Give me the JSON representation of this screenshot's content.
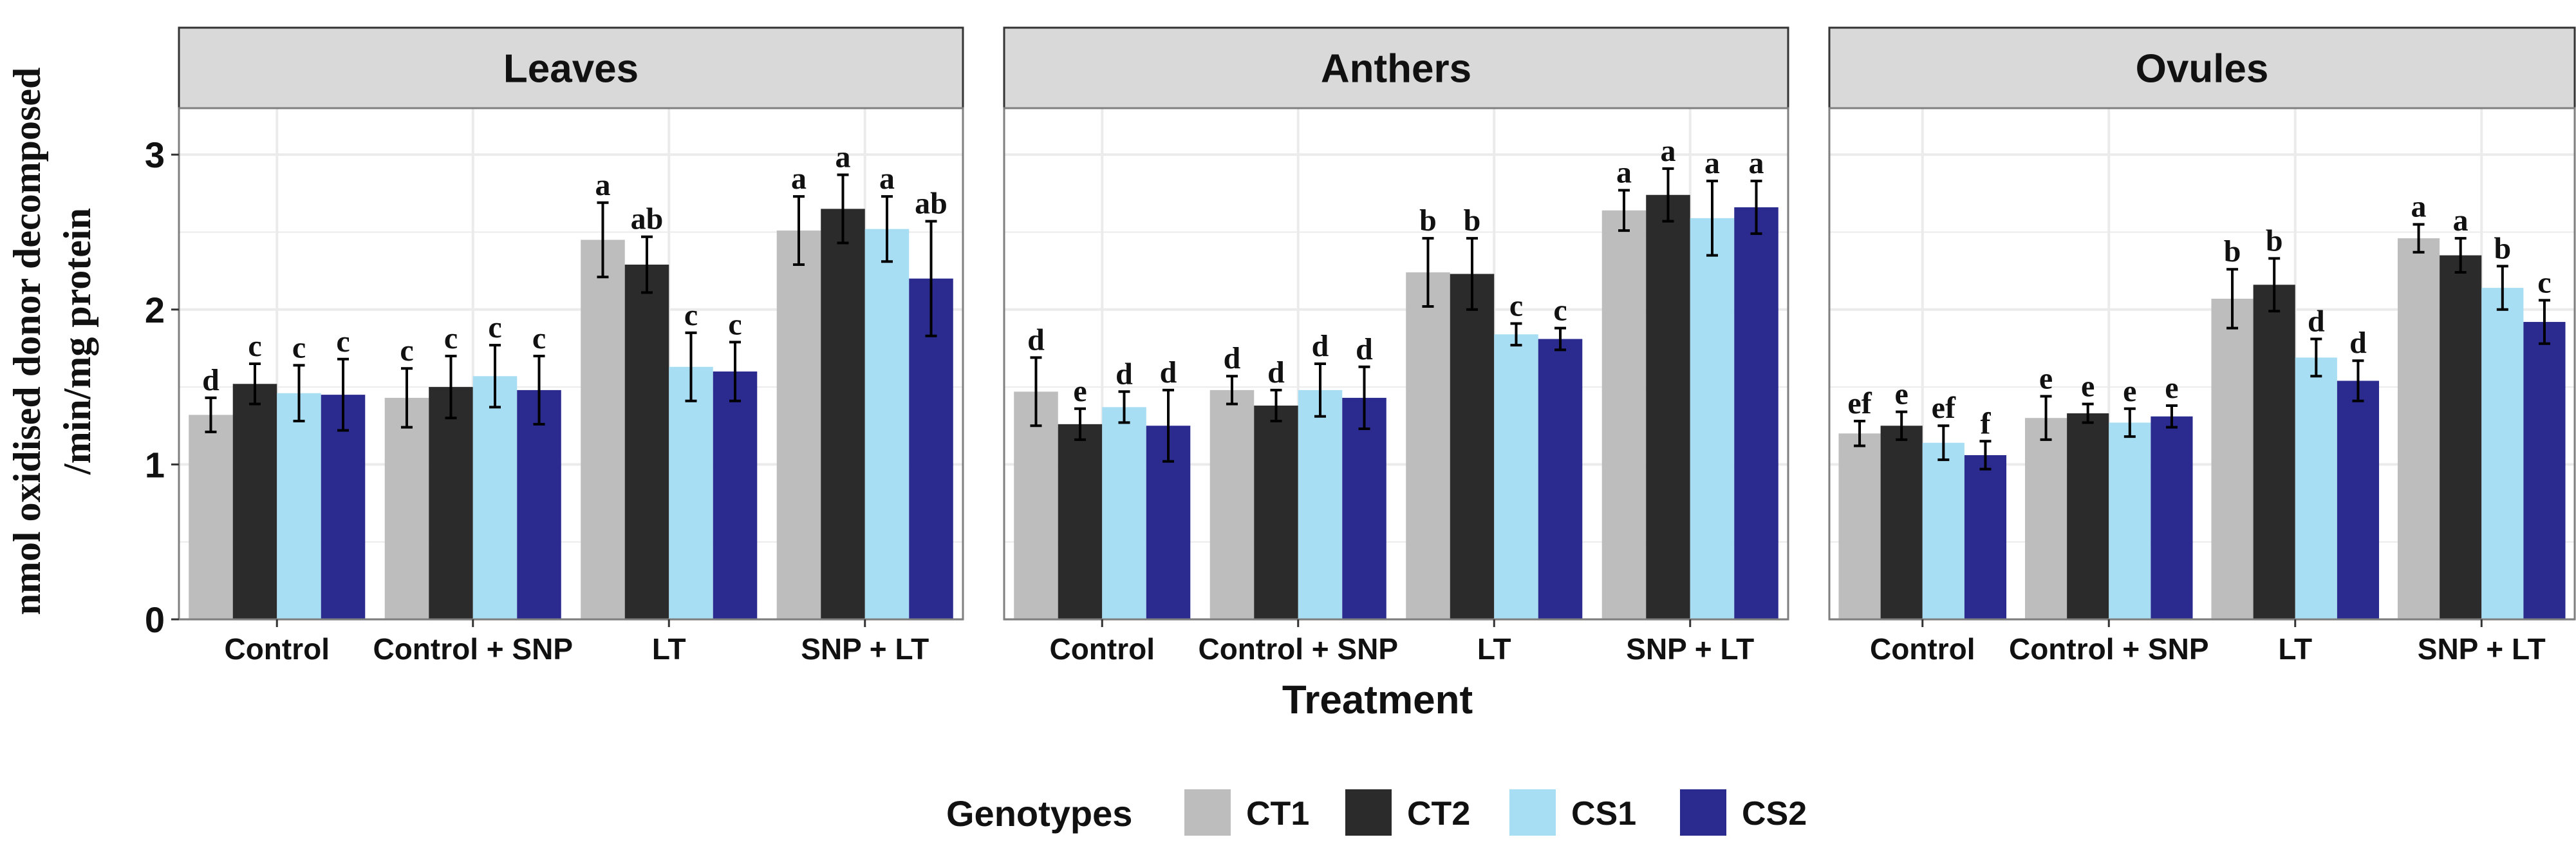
{
  "chart_data": {
    "type": "bar",
    "ylabel": [
      "nmol oxidised donor decomposed",
      "/min/mg protein"
    ],
    "xlabel": "Treatment",
    "ylim": [
      0,
      3.3
    ],
    "yticks": [
      0,
      1,
      2,
      3
    ],
    "grid": true,
    "categories": [
      "Control",
      "Control + SNP",
      "LT",
      "SNP + LT"
    ],
    "legend": {
      "title": "Genotypes",
      "position": "bottom",
      "entries": [
        "CT1",
        "CT2",
        "CS1",
        "CS2"
      ]
    },
    "colors": {
      "CT1": "#bdbdbd",
      "CT2": "#2b2b2b",
      "CS1": "#a8def3",
      "CS2": "#2b2b8f",
      "strip_fill": "#d9d9d9",
      "grid": "#ebebeb",
      "frame": "#7f7f7f"
    },
    "panels": [
      {
        "title": "Leaves",
        "series": [
          {
            "name": "CT1",
            "values": [
              1.32,
              1.43,
              2.45,
              2.51
            ],
            "errors": [
              0.11,
              0.19,
              0.24,
              0.22
            ],
            "labels": [
              "d",
              "c",
              "a",
              "a"
            ]
          },
          {
            "name": "CT2",
            "values": [
              1.52,
              1.5,
              2.29,
              2.65
            ],
            "errors": [
              0.13,
              0.2,
              0.18,
              0.22
            ],
            "labels": [
              "c",
              "c",
              "ab",
              "a"
            ]
          },
          {
            "name": "CS1",
            "values": [
              1.46,
              1.57,
              1.63,
              2.52
            ],
            "errors": [
              0.18,
              0.2,
              0.22,
              0.21
            ],
            "labels": [
              "c",
              "c",
              "c",
              "a"
            ]
          },
          {
            "name": "CS2",
            "values": [
              1.45,
              1.48,
              1.6,
              2.2
            ],
            "errors": [
              0.23,
              0.22,
              0.19,
              0.37
            ],
            "labels": [
              "c",
              "c",
              "c",
              "ab"
            ]
          }
        ]
      },
      {
        "title": "Anthers",
        "series": [
          {
            "name": "CT1",
            "values": [
              1.47,
              1.48,
              2.24,
              2.64
            ],
            "errors": [
              0.22,
              0.09,
              0.22,
              0.13
            ],
            "labels": [
              "d",
              "d",
              "b",
              "a"
            ]
          },
          {
            "name": "CT2",
            "values": [
              1.26,
              1.38,
              2.23,
              2.74
            ],
            "errors": [
              0.1,
              0.1,
              0.23,
              0.17
            ],
            "labels": [
              "e",
              "d",
              "b",
              "a"
            ]
          },
          {
            "name": "CS1",
            "values": [
              1.37,
              1.48,
              1.84,
              2.59
            ],
            "errors": [
              0.1,
              0.17,
              0.07,
              0.24
            ],
            "labels": [
              "d",
              "d",
              "c",
              "a"
            ]
          },
          {
            "name": "CS2",
            "values": [
              1.25,
              1.43,
              1.81,
              2.66
            ],
            "errors": [
              0.23,
              0.2,
              0.07,
              0.17
            ],
            "labels": [
              "d",
              "d",
              "c",
              "a"
            ]
          }
        ]
      },
      {
        "title": "Ovules",
        "series": [
          {
            "name": "CT1",
            "values": [
              1.2,
              1.3,
              2.07,
              2.46
            ],
            "errors": [
              0.08,
              0.14,
              0.19,
              0.09
            ],
            "labels": [
              "ef",
              "e",
              "b",
              "a"
            ]
          },
          {
            "name": "CT2",
            "values": [
              1.25,
              1.33,
              2.16,
              2.35
            ],
            "errors": [
              0.09,
              0.06,
              0.17,
              0.11
            ],
            "labels": [
              "e",
              "e",
              "b",
              "a"
            ]
          },
          {
            "name": "CS1",
            "values": [
              1.14,
              1.27,
              1.69,
              2.14
            ],
            "errors": [
              0.11,
              0.09,
              0.12,
              0.14
            ],
            "labels": [
              "ef",
              "e",
              "d",
              "b"
            ]
          },
          {
            "name": "CS2",
            "values": [
              1.06,
              1.31,
              1.54,
              1.92
            ],
            "errors": [
              0.09,
              0.07,
              0.13,
              0.14
            ],
            "labels": [
              "f",
              "e",
              "d",
              "c"
            ]
          }
        ]
      }
    ]
  }
}
